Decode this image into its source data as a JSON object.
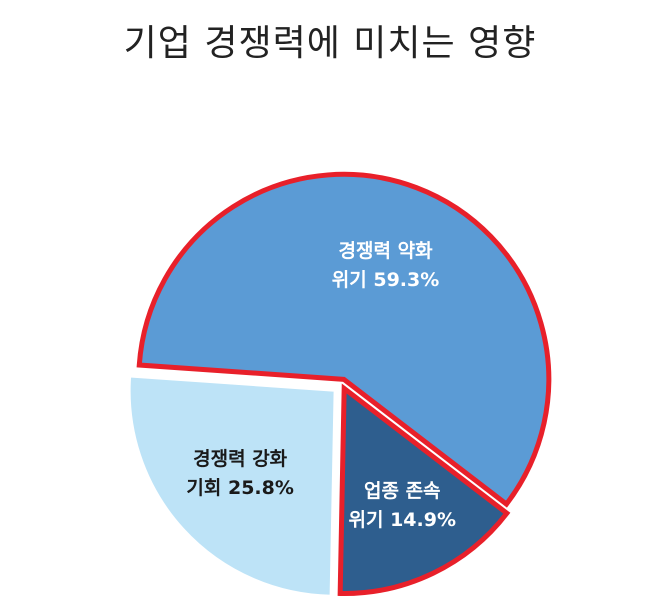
{
  "chart_data": {
    "type": "pie",
    "title": "기업 경쟁력에 미치는 영향",
    "slices": [
      {
        "line1": "경쟁력 약화",
        "line2": "위기 59.3%",
        "value": 59.3,
        "color": "#5b9bd5",
        "text_color": "#ffffff",
        "highlighted": true
      },
      {
        "line1": "업종 존속",
        "line2": "위기 14.9%",
        "value": 14.9,
        "color": "#2e5e8e",
        "text_color": "#ffffff",
        "highlighted": true
      },
      {
        "line1": "경쟁력 강화",
        "line2": "기회 25.8%",
        "value": 25.8,
        "color": "#bde3f7",
        "text_color": "#1a1a1a",
        "highlighted": false
      }
    ],
    "highlight_color": "#e8202a"
  }
}
